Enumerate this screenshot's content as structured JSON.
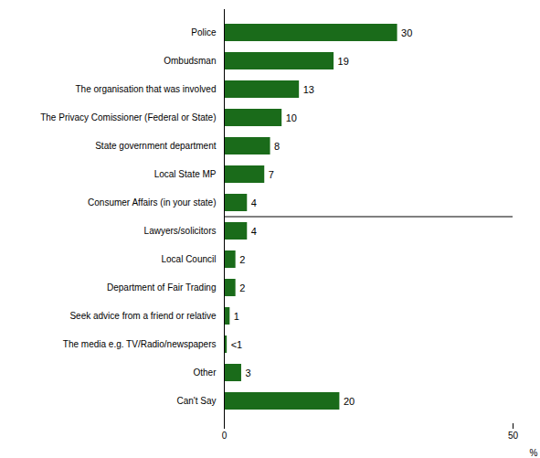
{
  "chart_data": {
    "type": "bar",
    "orientation": "horizontal",
    "categories": [
      "Can't Say",
      "Other",
      "The media e.g. TV/Radio/newspapers",
      "Seek advice from a friend or relative",
      "Department of Fair Trading",
      "Local Council",
      "Lawyers/solicitors",
      "Consumer Affairs (in your state)",
      "Local State MP",
      "State government department",
      "The Privacy Comissioner (Federal or State)",
      "The organisation that was involved",
      "Ombudsman",
      "Police"
    ],
    "values": [
      20,
      3,
      0.5,
      1,
      2,
      2,
      4,
      4,
      7,
      8,
      10,
      13,
      19,
      30
    ],
    "value_labels": [
      "20",
      "3",
      "<1",
      "1",
      "2",
      "2",
      "4",
      "4",
      "7",
      "8",
      "10",
      "13",
      "19",
      "30"
    ],
    "data_labels": true,
    "color": "#1a6b1a",
    "xlabel": "%",
    "xlim": [
      0,
      50
    ],
    "xticks": [
      0,
      50
    ],
    "grid": false
  }
}
